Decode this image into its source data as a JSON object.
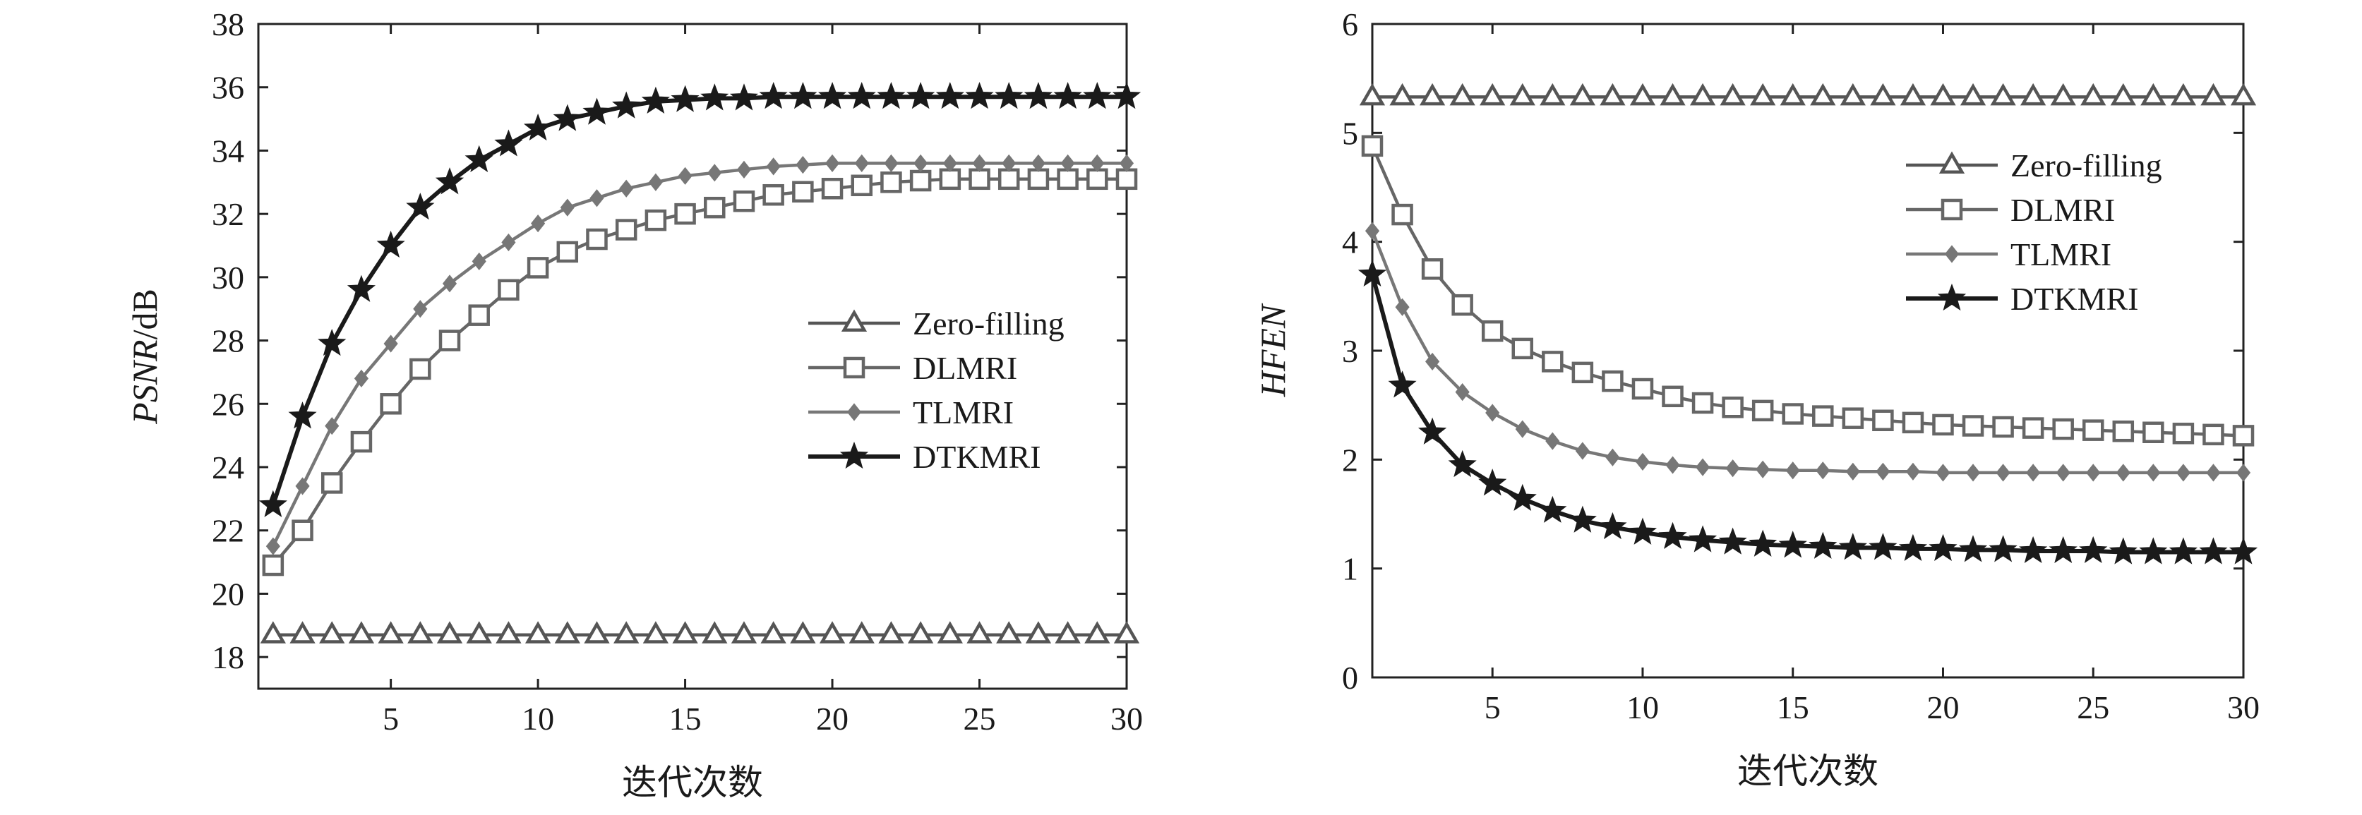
{
  "chart_data": [
    {
      "type": "line",
      "title": "",
      "xlabel": "迭代次数",
      "ylabel": "PSNR/dB",
      "xlim": [
        0.5,
        30
      ],
      "ylim": [
        17,
        38
      ],
      "xticks": [
        5,
        10,
        15,
        20,
        25,
        30
      ],
      "yticks": [
        18,
        20,
        22,
        24,
        26,
        28,
        30,
        32,
        34,
        36,
        38
      ],
      "legend_position": "center-right",
      "x": [
        1,
        2,
        3,
        4,
        5,
        6,
        7,
        8,
        9,
        10,
        11,
        12,
        13,
        14,
        15,
        16,
        17,
        18,
        19,
        20,
        21,
        22,
        23,
        24,
        25,
        26,
        27,
        28,
        29,
        30
      ],
      "series": [
        {
          "name": "Zero-filling",
          "marker": "triangle",
          "color": "#555555",
          "values": [
            18.7,
            18.7,
            18.7,
            18.7,
            18.7,
            18.7,
            18.7,
            18.7,
            18.7,
            18.7,
            18.7,
            18.7,
            18.7,
            18.7,
            18.7,
            18.7,
            18.7,
            18.7,
            18.7,
            18.7,
            18.7,
            18.7,
            18.7,
            18.7,
            18.7,
            18.7,
            18.7,
            18.7,
            18.7,
            18.7
          ]
        },
        {
          "name": "DLMRI",
          "marker": "square",
          "color": "#666666",
          "values": [
            20.9,
            22.0,
            23.5,
            24.8,
            26.0,
            27.1,
            28.0,
            28.8,
            29.6,
            30.3,
            30.8,
            31.2,
            31.5,
            31.8,
            32.0,
            32.2,
            32.4,
            32.6,
            32.7,
            32.8,
            32.9,
            33.0,
            33.05,
            33.1,
            33.1,
            33.1,
            33.1,
            33.1,
            33.1,
            33.1
          ]
        },
        {
          "name": "TLMRI",
          "marker": "diamond",
          "color": "#777777",
          "values": [
            21.5,
            23.4,
            25.3,
            26.8,
            27.9,
            29.0,
            29.8,
            30.5,
            31.1,
            31.7,
            32.2,
            32.5,
            32.8,
            33.0,
            33.2,
            33.3,
            33.4,
            33.5,
            33.55,
            33.6,
            33.6,
            33.6,
            33.6,
            33.6,
            33.6,
            33.6,
            33.6,
            33.6,
            33.6,
            33.6
          ]
        },
        {
          "name": "DTKMRI",
          "marker": "star",
          "color": "#1a1a1a",
          "values": [
            22.8,
            25.6,
            27.9,
            29.6,
            31.0,
            32.2,
            33.0,
            33.7,
            34.2,
            34.7,
            35.0,
            35.2,
            35.4,
            35.55,
            35.6,
            35.65,
            35.65,
            35.7,
            35.7,
            35.7,
            35.7,
            35.7,
            35.7,
            35.7,
            35.7,
            35.7,
            35.7,
            35.7,
            35.7,
            35.7
          ]
        }
      ]
    },
    {
      "type": "line",
      "title": "",
      "xlabel": "迭代次数",
      "ylabel": "HFEN",
      "xlim": [
        1,
        30
      ],
      "ylim": [
        0,
        6
      ],
      "xticks": [
        5,
        10,
        15,
        20,
        25,
        30
      ],
      "yticks": [
        0,
        1,
        2,
        3,
        4,
        5,
        6
      ],
      "legend_position": "upper-right",
      "x": [
        1,
        2,
        3,
        4,
        5,
        6,
        7,
        8,
        9,
        10,
        11,
        12,
        13,
        14,
        15,
        16,
        17,
        18,
        19,
        20,
        21,
        22,
        23,
        24,
        25,
        26,
        27,
        28,
        29,
        30
      ],
      "series": [
        {
          "name": "Zero-filling",
          "marker": "triangle",
          "color": "#555555",
          "values": [
            5.33,
            5.33,
            5.33,
            5.33,
            5.33,
            5.33,
            5.33,
            5.33,
            5.33,
            5.33,
            5.33,
            5.33,
            5.33,
            5.33,
            5.33,
            5.33,
            5.33,
            5.33,
            5.33,
            5.33,
            5.33,
            5.33,
            5.33,
            5.33,
            5.33,
            5.33,
            5.33,
            5.33,
            5.33,
            5.33
          ]
        },
        {
          "name": "DLMRI",
          "marker": "square",
          "color": "#666666",
          "values": [
            4.88,
            4.25,
            3.75,
            3.42,
            3.18,
            3.02,
            2.9,
            2.8,
            2.72,
            2.65,
            2.58,
            2.52,
            2.48,
            2.45,
            2.42,
            2.4,
            2.38,
            2.36,
            2.34,
            2.32,
            2.31,
            2.3,
            2.29,
            2.28,
            2.27,
            2.26,
            2.25,
            2.24,
            2.23,
            2.22
          ]
        },
        {
          "name": "TLMRI",
          "marker": "diamond",
          "color": "#777777",
          "values": [
            4.1,
            3.4,
            2.9,
            2.62,
            2.43,
            2.28,
            2.17,
            2.08,
            2.02,
            1.98,
            1.95,
            1.93,
            1.92,
            1.91,
            1.9,
            1.9,
            1.89,
            1.89,
            1.89,
            1.88,
            1.88,
            1.88,
            1.88,
            1.88,
            1.88,
            1.88,
            1.88,
            1.88,
            1.88,
            1.88
          ]
        },
        {
          "name": "DTKMRI",
          "marker": "star",
          "color": "#1a1a1a",
          "values": [
            3.7,
            2.68,
            2.25,
            1.95,
            1.78,
            1.64,
            1.53,
            1.44,
            1.38,
            1.33,
            1.29,
            1.26,
            1.24,
            1.22,
            1.21,
            1.2,
            1.19,
            1.19,
            1.18,
            1.18,
            1.17,
            1.17,
            1.16,
            1.16,
            1.16,
            1.15,
            1.15,
            1.15,
            1.15,
            1.15
          ]
        }
      ]
    }
  ]
}
